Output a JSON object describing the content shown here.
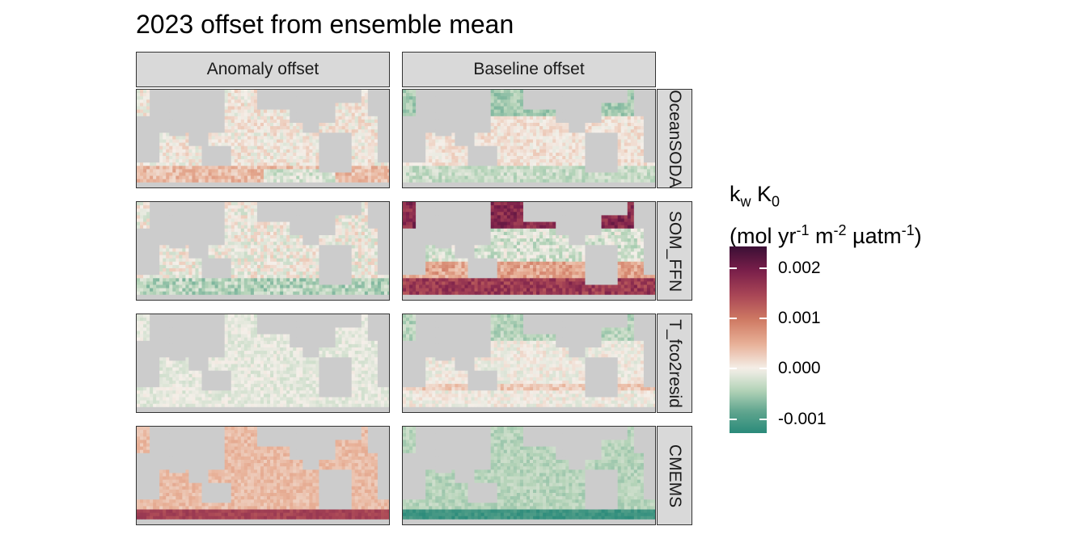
{
  "title": "2023 offset from ensemble mean",
  "legend": {
    "line1_main": "k",
    "line1_sub1": "w",
    "line1_mid": " K",
    "line1_sub2": "0",
    "line2_a": "(mol yr",
    "line2_sup1": "-1",
    "line2_b": " m",
    "line2_sup2": "-2",
    "line2_c": " µatm",
    "line2_sup3": "-1",
    "line2_d": ")",
    "ticks": [
      "0.002",
      "0.001",
      "0.000",
      "-0.001"
    ],
    "tick_values": [
      0.002,
      0.001,
      0.0,
      -0.001
    ],
    "range": [
      -0.00128,
      0.00243
    ],
    "colors": [
      "#2a8a7a",
      "#5fa58e",
      "#b4d3b8",
      "#f4efe9",
      "#e8b198",
      "#cf7a63",
      "#a94656",
      "#7a1f4a",
      "#3b0f35"
    ]
  },
  "chart_data": {
    "type": "heatmap",
    "title": "2023 offset from ensemble mean",
    "columns": [
      "Anomaly offset",
      "Baseline offset"
    ],
    "rows": [
      "OceanSODA",
      "SOM_FFN",
      "T_fco2resid",
      "CMEMS"
    ],
    "row_labels_shown": [
      "OceanSODA",
      "SOM_FFN",
      "T_fco2resid",
      "CMEMS"
    ],
    "legend_title": "kw K0 (mol yr-1 m-2 µatm-1)",
    "colorbar_range": [
      -0.00128,
      0.00243
    ],
    "colorbar_ticks": [
      -0.001,
      0.0,
      0.001,
      0.002
    ],
    "panel_mean_offset": {
      "OceanSODA": {
        "Anomaly offset": 0.0001,
        "Baseline offset": -0.0001
      },
      "SOM_FFN": {
        "Anomaly offset": -0.0001,
        "Baseline offset": 0.0009
      },
      "T_fco2resid": {
        "Anomaly offset": -5e-05,
        "Baseline offset": -0.0001
      },
      "CMEMS": {
        "Anomaly offset": 0.0003,
        "Baseline offset": -0.0004
      }
    }
  }
}
